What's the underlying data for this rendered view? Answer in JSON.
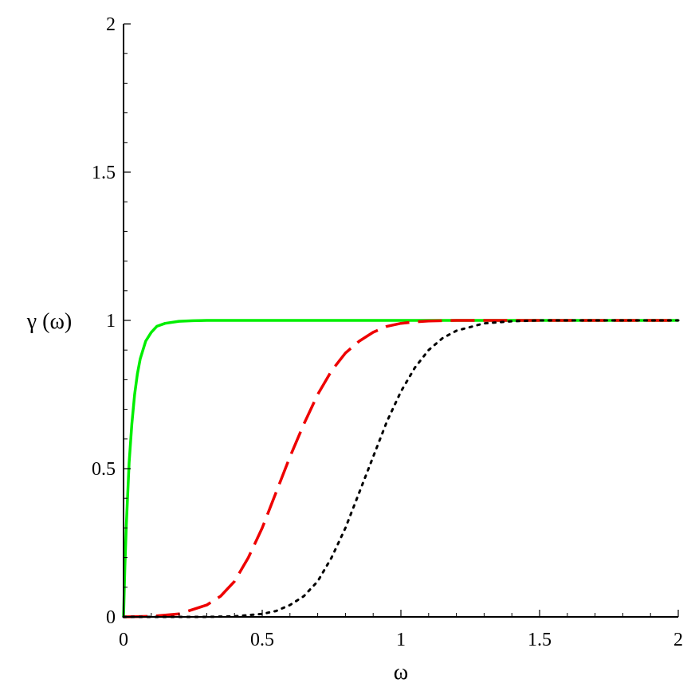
{
  "chart_data": {
    "type": "line",
    "xlabel": "ω",
    "ylabel": "γ (ω)",
    "xlim": [
      0,
      2
    ],
    "ylim": [
      0,
      2
    ],
    "x_ticks": [
      {
        "value": 0,
        "label": "0"
      },
      {
        "value": 0.5,
        "label": "0.5"
      },
      {
        "value": 1,
        "label": "1"
      },
      {
        "value": 1.5,
        "label": "1.5"
      },
      {
        "value": 2,
        "label": "2"
      }
    ],
    "y_ticks": [
      {
        "value": 0,
        "label": "0"
      },
      {
        "value": 0.5,
        "label": "0.5"
      },
      {
        "value": 1,
        "label": "1"
      },
      {
        "value": 1.5,
        "label": "1.5"
      },
      {
        "value": 2,
        "label": "2"
      }
    ],
    "minor_ticks_per_interval": 4,
    "grid": false,
    "legend": "none",
    "series": [
      {
        "color": "#00ee00",
        "style": "solid",
        "x": [
          0,
          0.005,
          0.01,
          0.02,
          0.03,
          0.04,
          0.05,
          0.06,
          0.08,
          0.1,
          0.12,
          0.15,
          0.2,
          0.25,
          0.3,
          0.4,
          0.6,
          1.0,
          1.5,
          2.0
        ],
        "y": [
          0,
          0.17,
          0.31,
          0.52,
          0.65,
          0.75,
          0.82,
          0.87,
          0.93,
          0.96,
          0.98,
          0.99,
          0.997,
          0.999,
          1.0,
          1.0,
          1.0,
          1.0,
          1.0,
          1.0
        ]
      },
      {
        "color": "#ee0000",
        "style": "dashed",
        "x": [
          0,
          0.1,
          0.2,
          0.3,
          0.35,
          0.4,
          0.45,
          0.5,
          0.55,
          0.6,
          0.65,
          0.7,
          0.75,
          0.8,
          0.85,
          0.9,
          0.95,
          1.0,
          1.05,
          1.1,
          1.2,
          1.3,
          1.5,
          2.0
        ],
        "y": [
          0,
          0.002,
          0.01,
          0.04,
          0.07,
          0.12,
          0.2,
          0.3,
          0.42,
          0.54,
          0.65,
          0.75,
          0.83,
          0.89,
          0.93,
          0.96,
          0.98,
          0.99,
          0.995,
          0.998,
          1.0,
          1.0,
          1.0,
          1.0
        ]
      },
      {
        "color": "#000000",
        "style": "dotted",
        "x": [
          0,
          0.3,
          0.4,
          0.5,
          0.55,
          0.6,
          0.65,
          0.7,
          0.75,
          0.8,
          0.85,
          0.9,
          0.95,
          1.0,
          1.05,
          1.1,
          1.15,
          1.2,
          1.3,
          1.4,
          1.5,
          2.0
        ],
        "y": [
          0,
          0.0,
          0.002,
          0.01,
          0.02,
          0.04,
          0.07,
          0.12,
          0.2,
          0.3,
          0.42,
          0.54,
          0.66,
          0.76,
          0.84,
          0.9,
          0.94,
          0.965,
          0.99,
          0.997,
          1.0,
          1.0
        ]
      }
    ]
  }
}
